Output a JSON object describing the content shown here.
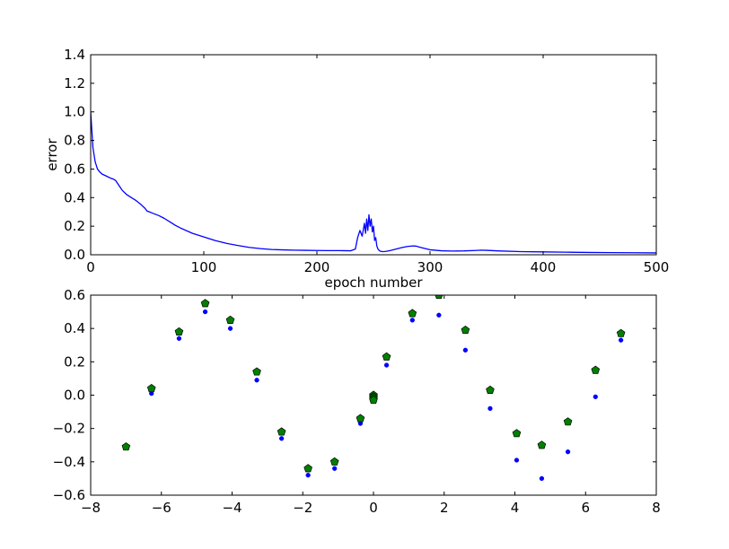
{
  "chart_data": [
    {
      "type": "line",
      "xlabel": "epoch number",
      "ylabel": "error",
      "xlim": [
        0,
        500
      ],
      "ylim": [
        0.0,
        1.4
      ],
      "xticks": [
        "0",
        "100",
        "200",
        "300",
        "400",
        "500"
      ],
      "yticks": [
        "0.0",
        "0.2",
        "0.4",
        "0.6",
        "0.8",
        "1.0",
        "1.2",
        "1.4"
      ],
      "grid": false,
      "series": [
        {
          "color": "#0000ff",
          "x": [
            0,
            2,
            4,
            6,
            8,
            10,
            14,
            18,
            20,
            22,
            25,
            28,
            32,
            36,
            40,
            44,
            48,
            50,
            52,
            55,
            60,
            65,
            70,
            75,
            80,
            90,
            100,
            110,
            120,
            130,
            140,
            150,
            160,
            170,
            180,
            190,
            200,
            210,
            220,
            230,
            234,
            236,
            238,
            240,
            242,
            243,
            244,
            245,
            246,
            247,
            248,
            249,
            250,
            251,
            252,
            253,
            254,
            255,
            256,
            258,
            260,
            262,
            265,
            270,
            275,
            280,
            285,
            288,
            290,
            295,
            300,
            310,
            320,
            330,
            340,
            345,
            350,
            360,
            380,
            400,
            420,
            440,
            460,
            480,
            500
          ],
          "y": [
            1.0,
            0.75,
            0.65,
            0.6,
            0.58,
            0.565,
            0.55,
            0.535,
            0.53,
            0.52,
            0.485,
            0.45,
            0.42,
            0.4,
            0.38,
            0.355,
            0.325,
            0.305,
            0.3,
            0.29,
            0.275,
            0.255,
            0.23,
            0.205,
            0.185,
            0.15,
            0.125,
            0.1,
            0.08,
            0.065,
            0.052,
            0.043,
            0.037,
            0.034,
            0.032,
            0.031,
            0.03,
            0.029,
            0.029,
            0.028,
            0.04,
            0.12,
            0.17,
            0.13,
            0.22,
            0.15,
            0.25,
            0.17,
            0.28,
            0.2,
            0.25,
            0.16,
            0.2,
            0.1,
            0.12,
            0.06,
            0.04,
            0.03,
            0.025,
            0.022,
            0.023,
            0.025,
            0.03,
            0.04,
            0.05,
            0.058,
            0.062,
            0.06,
            0.055,
            0.045,
            0.035,
            0.028,
            0.026,
            0.027,
            0.03,
            0.032,
            0.031,
            0.027,
            0.022,
            0.02,
            0.018,
            0.016,
            0.015,
            0.014,
            0.013
          ]
        }
      ]
    },
    {
      "type": "scatter",
      "xlim": [
        -8,
        8
      ],
      "ylim": [
        -0.6,
        0.6
      ],
      "xticks": [
        "−8",
        "−6",
        "−4",
        "−2",
        "0",
        "2",
        "4",
        "6",
        "8"
      ],
      "yticks": [
        "−0.6",
        "−0.4",
        "−0.2",
        "0.0",
        "0.2",
        "0.4",
        "0.6"
      ],
      "grid": false,
      "series": [
        {
          "marker": "dot",
          "color": "#0000ff",
          "x": [
            -7.0,
            -6.28,
            -5.5,
            -4.76,
            -4.05,
            -3.3,
            -2.6,
            -1.85,
            -1.1,
            -0.37,
            0.0,
            0.0,
            0.0,
            0.0,
            0.37,
            1.1,
            1.85,
            2.6,
            3.3,
            4.05,
            4.76,
            5.5,
            6.28,
            7.0
          ],
          "y": [
            -0.31,
            0.01,
            0.34,
            0.5,
            0.4,
            0.09,
            -0.26,
            -0.48,
            -0.44,
            -0.17,
            0.0,
            -0.01,
            -0.02,
            -0.03,
            0.18,
            0.45,
            0.48,
            0.27,
            -0.08,
            -0.39,
            -0.5,
            -0.34,
            -0.01,
            0.33
          ]
        },
        {
          "marker": "pentagon",
          "color": "#008000",
          "x": [
            -7.0,
            -6.28,
            -5.5,
            -4.76,
            -4.05,
            -3.3,
            -2.6,
            -1.85,
            -1.1,
            -0.37,
            0.0,
            0.0,
            0.0,
            0.0,
            0.37,
            1.1,
            1.85,
            2.6,
            3.3,
            4.05,
            4.76,
            5.5,
            6.28,
            7.0
          ],
          "y": [
            -0.31,
            0.04,
            0.38,
            0.55,
            0.45,
            0.14,
            -0.22,
            -0.44,
            -0.4,
            -0.14,
            0.0,
            -0.01,
            -0.02,
            -0.03,
            0.23,
            0.49,
            0.6,
            0.39,
            0.03,
            -0.23,
            -0.3,
            -0.16,
            0.15,
            0.37
          ]
        }
      ]
    }
  ]
}
